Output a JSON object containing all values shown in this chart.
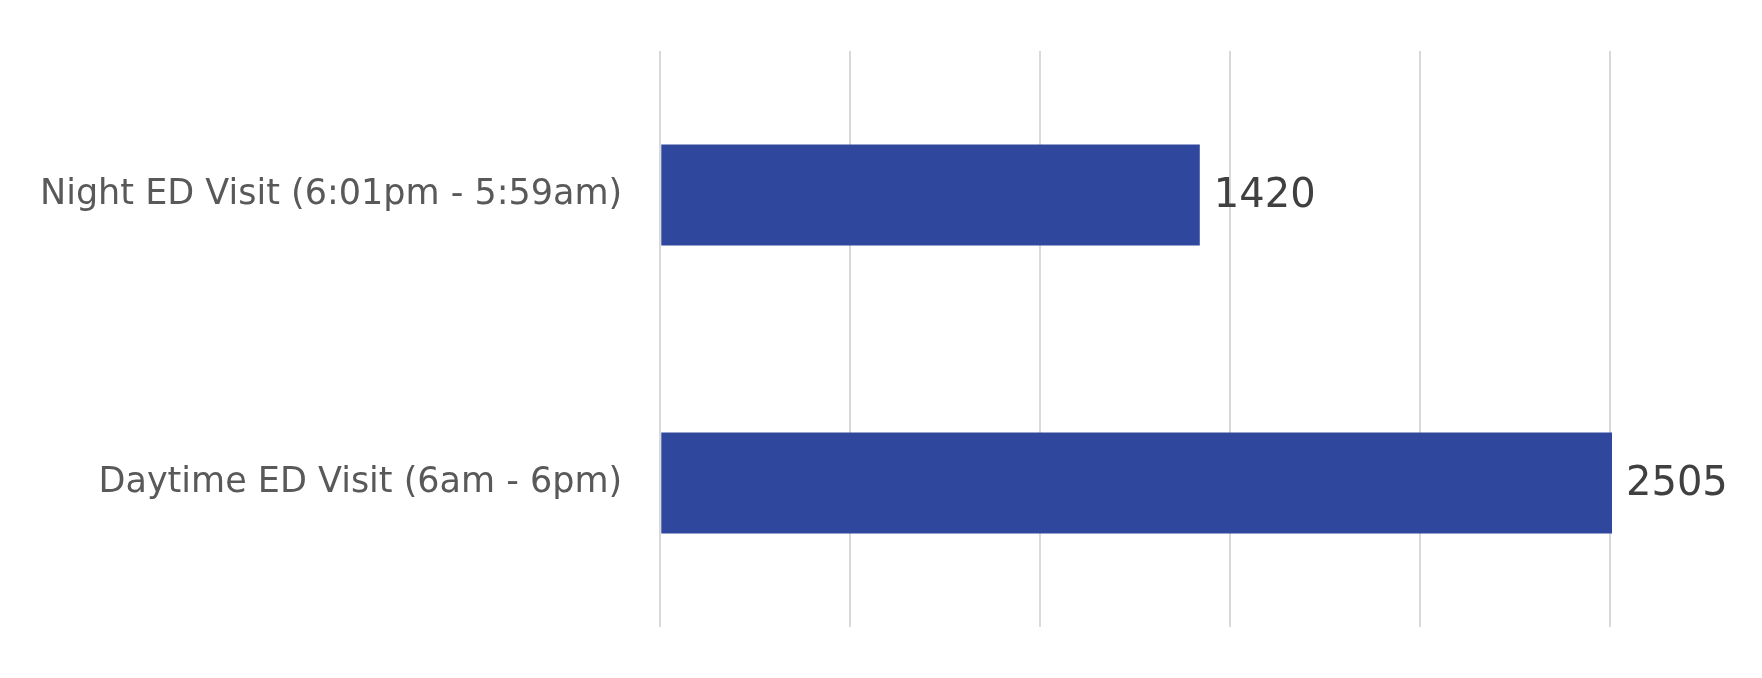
{
  "chart_data": {
    "type": "bar",
    "orientation": "horizontal",
    "categories": [
      "Night ED Visit (6:01pm - 5:59am)",
      "Daytime ED Visit (6am - 6pm)"
    ],
    "values": [
      1420,
      2505
    ],
    "color": "#30479e",
    "xlim": [
      0,
      2505
    ],
    "xticks": [
      {
        "value": 0,
        "label": null
      },
      {
        "value": 500,
        "label": null
      },
      {
        "value": 1000,
        "label": null
      },
      {
        "value": 1500,
        "label": null
      },
      {
        "value": 2000,
        "label": null
      },
      {
        "value": 2500,
        "label": null
      }
    ],
    "grid": "x",
    "tick_labels": "y",
    "data_labels": true
  }
}
